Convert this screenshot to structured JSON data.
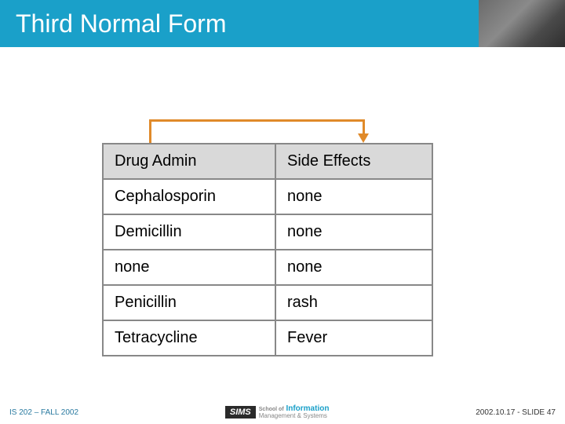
{
  "title": "Third Normal Form",
  "table": {
    "columns": [
      "Drug Admin",
      "Side Effects"
    ],
    "rows": [
      [
        "Cephalosporin",
        "none"
      ],
      [
        "Demicillin",
        "none"
      ],
      [
        "none",
        "none"
      ],
      [
        "Penicillin",
        "rash"
      ],
      [
        "Tetracycline",
        "Fever"
      ]
    ],
    "header_bg": "#d9d9d9",
    "border_color": "#888888",
    "cell_bg": "#ffffff",
    "font_size": 20
  },
  "bracket": {
    "color": "#e08a2a"
  },
  "colors": {
    "title_bar": "#1aa0c9",
    "title_text": "#ffffff",
    "background": "#ffffff"
  },
  "footer": {
    "left": "IS 202 – FALL 2002",
    "right": "2002.10.17 - SLIDE 47",
    "logo_sims": "SIMS",
    "logo_line1": "School of Information",
    "logo_line2": "Management & Systems"
  }
}
